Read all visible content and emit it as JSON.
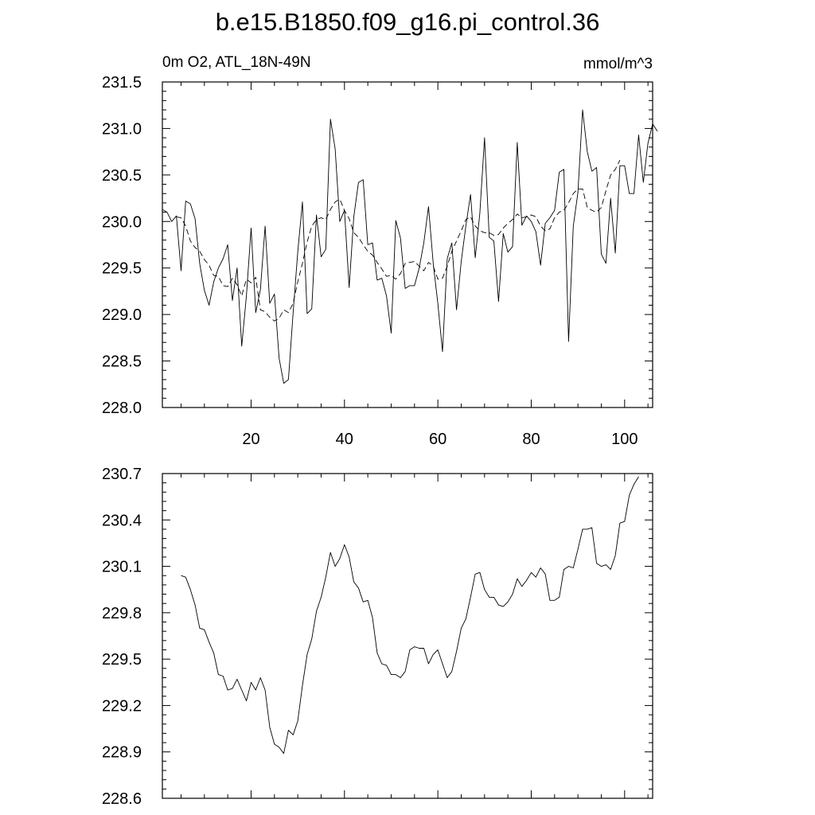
{
  "figure": {
    "title": "b.e15.B1850.f09_g16.pi_control.36"
  },
  "chart_data": [
    {
      "type": "line",
      "left_label": "0m O2, ATL_18N-49N",
      "right_label": "mmol/m^3",
      "xlim": [
        1,
        106
      ],
      "ylim": [
        228.0,
        231.5
      ],
      "x_ticks": [
        20,
        40,
        60,
        80,
        100
      ],
      "y_ticks": [
        "228.0",
        "228.5",
        "229.0",
        "229.5",
        "230.0",
        "230.5",
        "231.0",
        "231.5"
      ],
      "grid": false,
      "series": [
        {
          "style": "solid",
          "x_start": 1,
          "values": [
            230.13,
            230.1,
            230.0,
            230.06,
            229.47,
            230.22,
            230.19,
            230.03,
            229.55,
            229.26,
            229.1,
            229.35,
            229.5,
            229.6,
            229.75,
            229.15,
            229.5,
            228.66,
            229.2,
            229.93,
            229.02,
            229.27,
            229.95,
            229.12,
            229.22,
            228.53,
            228.26,
            228.3,
            229.02,
            229.67,
            230.21,
            229.01,
            229.06,
            230.07,
            229.62,
            229.7,
            231.1,
            230.78,
            230.0,
            230.12,
            229.29,
            230.05,
            230.42,
            230.45,
            229.75,
            229.77,
            229.37,
            229.39,
            229.2,
            228.8,
            230.01,
            229.82,
            229.28,
            229.31,
            229.31,
            229.5,
            229.77,
            230.16,
            229.55,
            229.12,
            228.6,
            229.6,
            229.77,
            229.05,
            229.57,
            229.95,
            230.29,
            229.61,
            230.09,
            230.9,
            229.83,
            229.79,
            229.14,
            229.87,
            229.67,
            229.73,
            230.85,
            229.96,
            230.06,
            230.0,
            229.89,
            229.53,
            229.98,
            230.04,
            230.12,
            230.53,
            230.56,
            228.71,
            229.95,
            230.31,
            231.2,
            230.75,
            230.54,
            230.58,
            229.65,
            229.55,
            230.25,
            229.66,
            230.6,
            230.6,
            230.3,
            230.3,
            230.93,
            230.42,
            230.84,
            231.05,
            230.97
          ]
        },
        {
          "style": "dashed",
          "x_start": 4,
          "values": [
            230.05,
            230.04,
            229.95,
            229.79,
            229.72,
            229.68,
            229.59,
            229.53,
            229.42,
            229.41,
            229.31,
            229.3,
            229.39,
            229.32,
            229.2,
            229.38,
            229.34,
            229.4,
            229.05,
            229.03,
            228.97,
            228.93,
            228.96,
            229.05,
            229.02,
            229.12,
            229.35,
            229.55,
            229.78,
            229.95,
            230.02,
            230.04,
            230.02,
            230.13,
            230.21,
            230.24,
            230.12,
            230.03,
            229.88,
            229.83,
            229.75,
            229.68,
            229.64,
            229.56,
            229.49,
            229.41,
            229.42,
            229.38,
            229.44,
            229.55,
            229.56,
            229.57,
            229.52,
            229.47,
            229.56,
            229.52,
            229.38,
            229.39,
            229.52,
            229.68,
            229.79,
            229.9,
            230.02,
            230.05,
            229.95,
            229.9,
            229.88,
            229.88,
            229.85,
            229.86,
            229.93,
            229.98,
            230.02,
            230.08,
            230.04,
            230.05,
            230.07,
            230.05,
            229.95,
            229.9,
            229.92,
            230.04,
            230.1,
            230.12,
            230.2,
            230.3,
            230.35,
            230.35,
            230.15,
            230.12,
            230.1,
            230.15,
            230.33,
            230.5,
            230.56,
            230.66
          ]
        }
      ]
    },
    {
      "type": "line",
      "xlim": [
        1,
        106
      ],
      "ylim": [
        228.6,
        230.7
      ],
      "x_ticks": [
        20,
        40,
        60,
        80,
        100
      ],
      "y_ticks": [
        "228.6",
        "228.9",
        "229.2",
        "229.5",
        "229.8",
        "230.1",
        "230.4",
        "230.7"
      ],
      "grid": false,
      "series": [
        {
          "style": "solid",
          "x_start": 5,
          "values": [
            230.04,
            230.03,
            229.95,
            229.85,
            229.7,
            229.69,
            229.61,
            229.54,
            229.4,
            229.39,
            229.3,
            229.31,
            229.37,
            229.3,
            229.23,
            229.35,
            229.3,
            229.38,
            229.3,
            229.06,
            228.95,
            228.93,
            228.89,
            229.04,
            229.01,
            229.1,
            229.33,
            229.53,
            229.63,
            229.81,
            229.9,
            230.03,
            230.19,
            230.1,
            230.15,
            230.24,
            230.16,
            230.0,
            229.96,
            229.87,
            229.88,
            229.77,
            229.54,
            229.47,
            229.46,
            229.4,
            229.4,
            229.38,
            229.42,
            229.56,
            229.58,
            229.57,
            229.57,
            229.47,
            229.53,
            229.56,
            229.47,
            229.38,
            229.42,
            229.55,
            229.7,
            229.76,
            229.9,
            230.05,
            230.06,
            229.95,
            229.9,
            229.9,
            229.85,
            229.84,
            229.87,
            229.92,
            230.02,
            229.97,
            230.01,
            230.06,
            230.03,
            230.09,
            230.05,
            229.88,
            229.88,
            229.9,
            230.08,
            230.1,
            230.09,
            230.21,
            230.34,
            230.34,
            230.35,
            230.12,
            230.1,
            230.11,
            230.08,
            230.17,
            230.38,
            230.39,
            230.56,
            230.63,
            230.68
          ]
        }
      ]
    }
  ]
}
